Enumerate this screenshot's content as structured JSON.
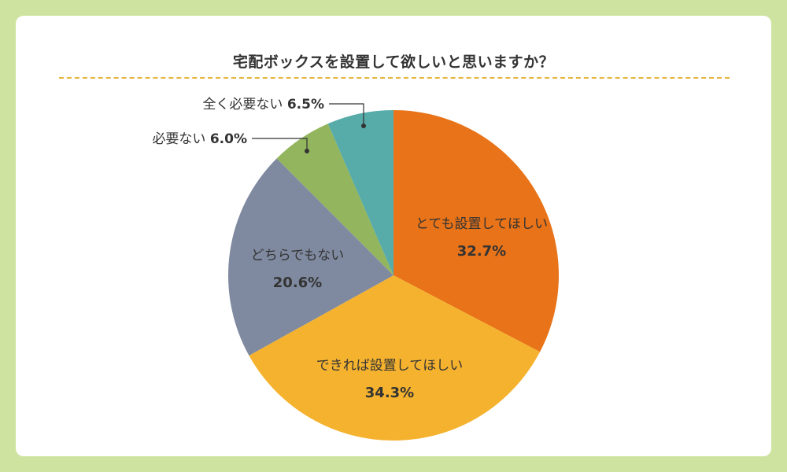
{
  "chart_data": {
    "type": "pie",
    "title": "宅配ボックスを設置して欲しいと思いますか？",
    "start_angle_deg": 0,
    "direction": "clockwise",
    "slices": [
      {
        "label": "とても設置してほしい",
        "value": 32.7,
        "value_label": "32.7%",
        "color": "#e87318"
      },
      {
        "label": "できれば設置してほしい",
        "value": 34.3,
        "value_label": "34.3%",
        "color": "#f5b22e"
      },
      {
        "label": "どちらでもない",
        "value": 20.6,
        "value_label": "20.6%",
        "color": "#7f8aa0"
      },
      {
        "label": "必要ない",
        "value": 6.0,
        "value_label": "6.0%",
        "color": "#93b55e"
      },
      {
        "label": "全く必要ない",
        "value": 6.5,
        "value_label": "6.5%",
        "color": "#57aba8"
      }
    ]
  },
  "colors": {
    "background": "#cfe3a1",
    "card": "#ffffff",
    "divider": "#e6b43c",
    "text": "#333333"
  }
}
